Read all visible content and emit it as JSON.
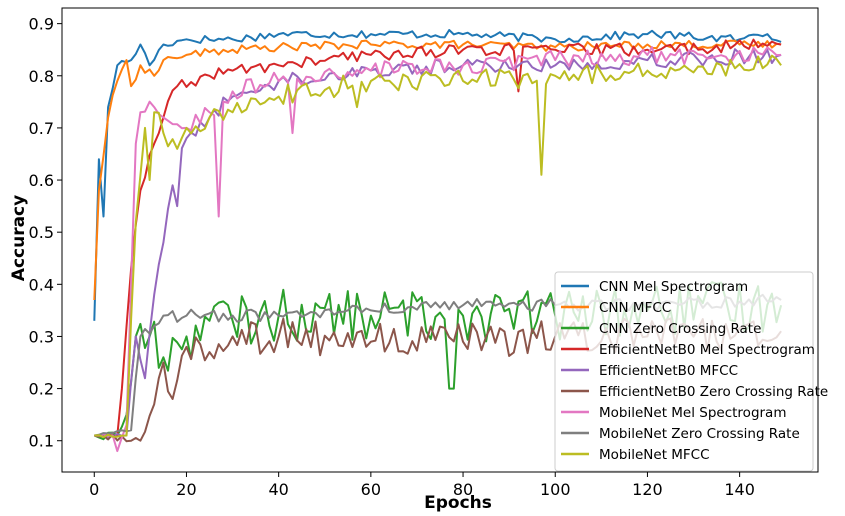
{
  "chart_data": {
    "type": "line",
    "xlabel": "Epochs",
    "ylabel": "Accuracy",
    "xlim": [
      -7,
      157
    ],
    "ylim": [
      0.04,
      0.93
    ],
    "xticks": [
      0,
      20,
      40,
      60,
      80,
      100,
      120,
      140
    ],
    "yticks": [
      0.1,
      0.2,
      0.3,
      0.4,
      0.5,
      0.6,
      0.7,
      0.8,
      0.9
    ],
    "grid": false,
    "legend_position": "lower-right",
    "epochs": 150,
    "series": [
      {
        "name": "CNN Mel Spectrogram",
        "color": "#1f77b4",
        "points": [
          [
            0,
            0.33
          ],
          [
            1,
            0.64
          ],
          [
            2,
            0.53
          ],
          [
            3,
            0.74
          ],
          [
            5,
            0.82
          ],
          [
            8,
            0.83
          ],
          [
            10,
            0.86
          ],
          [
            12,
            0.82
          ],
          [
            15,
            0.86
          ],
          [
            20,
            0.87
          ],
          [
            30,
            0.87
          ],
          [
            40,
            0.88
          ],
          [
            60,
            0.88
          ],
          [
            80,
            0.88
          ],
          [
            100,
            0.87
          ],
          [
            120,
            0.88
          ],
          [
            140,
            0.87
          ],
          [
            146,
            0.88
          ],
          [
            149,
            0.865
          ]
        ],
        "noise": 0.008,
        "dips": []
      },
      {
        "name": "CNN MFCC",
        "color": "#ff7f0e",
        "points": [
          [
            0,
            0.37
          ],
          [
            1,
            0.58
          ],
          [
            3,
            0.72
          ],
          [
            5,
            0.79
          ],
          [
            7,
            0.83
          ],
          [
            8,
            0.78
          ],
          [
            10,
            0.82
          ],
          [
            13,
            0.8
          ],
          [
            15,
            0.83
          ],
          [
            20,
            0.84
          ],
          [
            30,
            0.85
          ],
          [
            40,
            0.855
          ],
          [
            60,
            0.86
          ],
          [
            80,
            0.86
          ],
          [
            100,
            0.855
          ],
          [
            120,
            0.86
          ],
          [
            140,
            0.86
          ],
          [
            149,
            0.86
          ]
        ],
        "noise": 0.008,
        "dips": []
      },
      {
        "name": "CNN Zero Crossing Rate",
        "color": "#2ca02c",
        "points": [
          [
            0,
            0.11
          ],
          [
            5,
            0.11
          ],
          [
            7,
            0.15
          ],
          [
            9,
            0.3
          ],
          [
            12,
            0.3
          ],
          [
            15,
            0.26
          ],
          [
            20,
            0.3
          ],
          [
            25,
            0.33
          ],
          [
            30,
            0.33
          ],
          [
            40,
            0.34
          ],
          [
            60,
            0.34
          ],
          [
            80,
            0.34
          ],
          [
            100,
            0.34
          ],
          [
            120,
            0.35
          ],
          [
            149,
            0.36
          ]
        ],
        "noise": 0.05,
        "dips": [
          [
            77,
            0.2
          ],
          [
            78,
            0.2
          ]
        ]
      },
      {
        "name": "EfficientNetB0 Mel Spectrogram",
        "color": "#d62728",
        "points": [
          [
            0,
            0.11
          ],
          [
            5,
            0.11
          ],
          [
            6,
            0.2
          ],
          [
            8,
            0.43
          ],
          [
            10,
            0.58
          ],
          [
            13,
            0.67
          ],
          [
            15,
            0.72
          ],
          [
            18,
            0.78
          ],
          [
            25,
            0.8
          ],
          [
            30,
            0.81
          ],
          [
            40,
            0.82
          ],
          [
            60,
            0.84
          ],
          [
            80,
            0.85
          ],
          [
            100,
            0.85
          ],
          [
            120,
            0.85
          ],
          [
            149,
            0.86
          ]
        ],
        "noise": 0.012,
        "dips": [
          [
            92,
            0.77
          ]
        ]
      },
      {
        "name": "EfficientNetB0 MFCC",
        "color": "#9467bd",
        "points": [
          [
            0,
            0.11
          ],
          [
            7,
            0.11
          ],
          [
            9,
            0.3
          ],
          [
            11,
            0.22
          ],
          [
            13,
            0.38
          ],
          [
            15,
            0.48
          ],
          [
            17,
            0.59
          ],
          [
            20,
            0.68
          ],
          [
            25,
            0.72
          ],
          [
            30,
            0.76
          ],
          [
            40,
            0.79
          ],
          [
            60,
            0.81
          ],
          [
            80,
            0.82
          ],
          [
            100,
            0.82
          ],
          [
            120,
            0.83
          ],
          [
            149,
            0.84
          ]
        ],
        "noise": 0.015,
        "dips": [
          [
            18,
            0.55
          ]
        ]
      },
      {
        "name": "EfficientNetB0 Zero Crossing Rate",
        "color": "#8c564b",
        "points": [
          [
            0,
            0.11
          ],
          [
            8,
            0.1
          ],
          [
            10,
            0.1
          ],
          [
            13,
            0.17
          ],
          [
            15,
            0.25
          ],
          [
            17,
            0.18
          ],
          [
            20,
            0.28
          ],
          [
            25,
            0.27
          ],
          [
            30,
            0.3
          ],
          [
            40,
            0.3
          ],
          [
            60,
            0.29
          ],
          [
            80,
            0.29
          ],
          [
            100,
            0.3
          ],
          [
            120,
            0.3
          ],
          [
            149,
            0.31
          ]
        ],
        "noise": 0.035,
        "dips": []
      },
      {
        "name": "MobileNet Mel Spectrogram",
        "color": "#e377c2",
        "points": [
          [
            0,
            0.11
          ],
          [
            4,
            0.11
          ],
          [
            5,
            0.08
          ],
          [
            7,
            0.13
          ],
          [
            9,
            0.67
          ],
          [
            10,
            0.73
          ],
          [
            13,
            0.74
          ],
          [
            15,
            0.72
          ],
          [
            20,
            0.7
          ],
          [
            25,
            0.73
          ],
          [
            30,
            0.77
          ],
          [
            40,
            0.79
          ],
          [
            60,
            0.81
          ],
          [
            80,
            0.82
          ],
          [
            100,
            0.83
          ],
          [
            120,
            0.84
          ],
          [
            149,
            0.84
          ]
        ],
        "noise": 0.018,
        "dips": [
          [
            27,
            0.53
          ],
          [
            43,
            0.69
          ]
        ]
      },
      {
        "name": "MobileNet Zero Crossing Rate",
        "color": "#7f7f7f",
        "points": [
          [
            0,
            0.11
          ],
          [
            8,
            0.12
          ],
          [
            10,
            0.3
          ],
          [
            13,
            0.32
          ],
          [
            15,
            0.34
          ],
          [
            20,
            0.34
          ],
          [
            30,
            0.34
          ],
          [
            40,
            0.34
          ],
          [
            60,
            0.35
          ],
          [
            80,
            0.36
          ],
          [
            100,
            0.36
          ],
          [
            120,
            0.36
          ],
          [
            149,
            0.37
          ]
        ],
        "noise": 0.012,
        "dips": []
      },
      {
        "name": "MobileNet MFCC",
        "color": "#bcbd22",
        "points": [
          [
            0,
            0.11
          ],
          [
            7,
            0.11
          ],
          [
            9,
            0.52
          ],
          [
            11,
            0.7
          ],
          [
            13,
            0.73
          ],
          [
            15,
            0.69
          ],
          [
            18,
            0.66
          ],
          [
            20,
            0.7
          ],
          [
            25,
            0.72
          ],
          [
            30,
            0.73
          ],
          [
            40,
            0.76
          ],
          [
            60,
            0.79
          ],
          [
            80,
            0.79
          ],
          [
            100,
            0.8
          ],
          [
            120,
            0.81
          ],
          [
            149,
            0.82
          ]
        ],
        "noise": 0.02,
        "dips": [
          [
            12,
            0.6
          ],
          [
            97,
            0.61
          ],
          [
            57,
            0.74
          ]
        ]
      }
    ]
  }
}
